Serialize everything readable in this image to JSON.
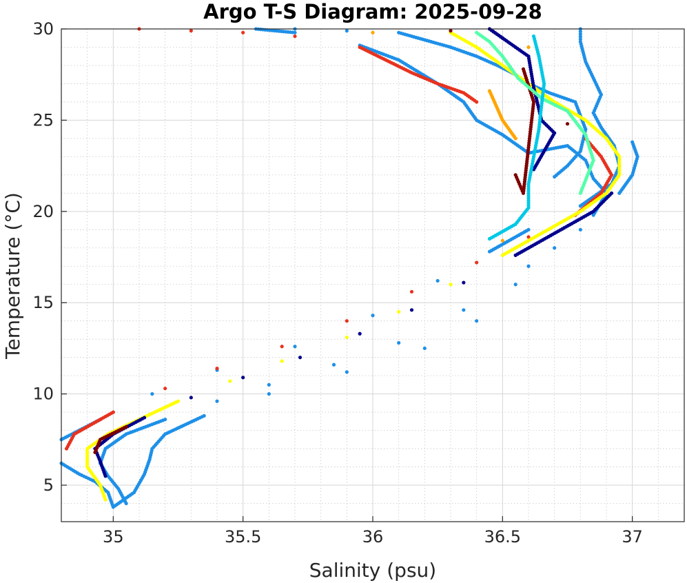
{
  "chart_data": {
    "type": "scatter",
    "title": "Argo T-S Diagram: 2025-09-28",
    "xlabel": "Salinity (psu)",
    "ylabel": "Temperature (°C)",
    "xlim": [
      34.8,
      37.2
    ],
    "ylim": [
      3,
      30
    ],
    "xticks": [
      35,
      35.5,
      36,
      36.5,
      37
    ],
    "xtick_labels": [
      "35",
      "35.5",
      "36",
      "36.5",
      "37"
    ],
    "yticks": [
      5,
      10,
      15,
      20,
      25,
      30
    ],
    "ytick_labels": [
      "5",
      "10",
      "15",
      "20",
      "25",
      "30"
    ],
    "grid": true,
    "minor_grid": true,
    "series": [
      {
        "color": "#1e90e8",
        "points": [
          [
            35.05,
            4.0
          ],
          [
            35.02,
            4.8
          ],
          [
            34.98,
            5.5
          ],
          [
            34.95,
            6.2
          ],
          [
            34.97,
            7.0
          ],
          [
            35.05,
            7.8
          ],
          [
            35.2,
            8.6
          ],
          [
            35.4,
            9.6
          ],
          [
            35.6,
            10.5
          ],
          [
            35.85,
            11.6
          ],
          [
            36.1,
            12.8
          ],
          [
            36.35,
            14.6
          ],
          [
            36.6,
            17.0
          ],
          [
            36.8,
            19.0
          ],
          [
            36.95,
            21.0
          ],
          [
            37.0,
            22.0
          ],
          [
            37.02,
            23.0
          ],
          [
            37.0,
            23.8
          ]
        ]
      },
      {
        "color": "#1e90e8",
        "points": [
          [
            34.8,
            7.5
          ],
          [
            34.95,
            8.6
          ],
          [
            35.15,
            10.0
          ],
          [
            35.4,
            11.3
          ],
          [
            35.7,
            12.6
          ],
          [
            36.0,
            14.3
          ],
          [
            36.25,
            16.2
          ],
          [
            36.45,
            17.8
          ],
          [
            36.6,
            19.0
          ],
          [
            36.8,
            20.3
          ],
          [
            36.92,
            21.5
          ],
          [
            36.95,
            22.5
          ],
          [
            36.93,
            23.6
          ],
          [
            36.88,
            24.6
          ],
          [
            36.85,
            25.4
          ],
          [
            36.88,
            26.4
          ],
          [
            36.85,
            27.3
          ],
          [
            36.82,
            28.2
          ],
          [
            36.8,
            29.3
          ],
          [
            36.8,
            30.0
          ]
        ]
      },
      {
        "color": "#1e90e8",
        "points": [
          [
            34.8,
            6.2
          ],
          [
            34.87,
            5.6
          ],
          [
            34.93,
            5.2
          ],
          [
            34.98,
            4.6
          ],
          [
            35.0,
            3.8
          ],
          [
            35.08,
            4.6
          ],
          [
            35.12,
            5.6
          ],
          [
            35.14,
            6.4
          ],
          [
            35.15,
            7.0
          ],
          [
            35.2,
            7.8
          ],
          [
            35.35,
            8.8
          ],
          [
            35.6,
            10.0
          ],
          [
            35.9,
            11.2
          ],
          [
            36.2,
            12.5
          ],
          [
            36.4,
            14.0
          ],
          [
            36.55,
            16.0
          ],
          [
            36.7,
            18.0
          ],
          [
            36.85,
            19.8
          ],
          [
            36.9,
            21.0
          ],
          [
            36.85,
            21.8
          ],
          [
            36.82,
            22.8
          ],
          [
            36.75,
            23.6
          ],
          [
            36.6,
            23.2
          ],
          [
            36.5,
            24.2
          ],
          [
            36.4,
            25.0
          ],
          [
            36.35,
            26.0
          ],
          [
            36.25,
            27.0
          ],
          [
            36.1,
            28.3
          ],
          [
            35.95,
            29.1
          ],
          [
            35.7,
            29.8
          ],
          [
            35.55,
            30.0
          ]
        ]
      },
      {
        "color": "#1e90e8",
        "points": [
          [
            35.7,
            30.0
          ],
          [
            35.9,
            29.9
          ],
          [
            36.1,
            29.8
          ],
          [
            36.2,
            29.4
          ],
          [
            36.3,
            29.0
          ],
          [
            36.4,
            28.5
          ],
          [
            36.48,
            28.0
          ],
          [
            36.55,
            27.5
          ],
          [
            36.6,
            27.0
          ],
          [
            36.68,
            26.5
          ],
          [
            36.78,
            26.0
          ],
          [
            36.82,
            24.5
          ],
          [
            36.8,
            23.3
          ],
          [
            36.75,
            22.5
          ],
          [
            36.7,
            21.9
          ]
        ]
      },
      {
        "color": "#e8321e",
        "points": [
          [
            34.82,
            7.0
          ],
          [
            34.85,
            7.8
          ],
          [
            35.0,
            9.0
          ],
          [
            35.2,
            10.3
          ],
          [
            35.4,
            11.4
          ],
          [
            35.65,
            12.6
          ],
          [
            35.9,
            14.0
          ],
          [
            36.15,
            15.6
          ],
          [
            36.4,
            17.2
          ],
          [
            36.6,
            18.6
          ],
          [
            36.78,
            19.8
          ],
          [
            36.88,
            21.0
          ],
          [
            36.92,
            22.0
          ],
          [
            36.88,
            23.0
          ],
          [
            36.82,
            24.0
          ]
        ]
      },
      {
        "color": "#e8321e",
        "points": [
          [
            36.4,
            26.0
          ],
          [
            36.35,
            26.5
          ],
          [
            36.25,
            27.0
          ],
          [
            36.15,
            27.6
          ],
          [
            36.05,
            28.3
          ],
          [
            35.95,
            29.0
          ],
          [
            35.7,
            29.6
          ],
          [
            35.5,
            29.8
          ],
          [
            35.3,
            29.9
          ],
          [
            35.1,
            30.0
          ]
        ]
      },
      {
        "color": "#ffff00",
        "points": [
          [
            34.97,
            4.2
          ],
          [
            34.95,
            5.0
          ],
          [
            34.9,
            6.0
          ],
          [
            34.9,
            7.0
          ],
          [
            34.98,
            7.8
          ],
          [
            35.1,
            8.6
          ],
          [
            35.25,
            9.6
          ],
          [
            35.45,
            10.7
          ],
          [
            35.65,
            11.8
          ],
          [
            35.9,
            13.1
          ],
          [
            36.1,
            14.5
          ],
          [
            36.3,
            16.0
          ],
          [
            36.5,
            17.6
          ],
          [
            36.65,
            18.8
          ],
          [
            36.8,
            20.0
          ],
          [
            36.9,
            21.0
          ],
          [
            36.95,
            22.0
          ],
          [
            36.95,
            23.0
          ],
          [
            36.9,
            24.0
          ],
          [
            36.82,
            25.0
          ],
          [
            36.7,
            26.0
          ],
          [
            36.6,
            27.0
          ],
          [
            36.5,
            28.0
          ],
          [
            36.4,
            29.0
          ],
          [
            36.3,
            29.8
          ]
        ]
      },
      {
        "color": "#00008c",
        "points": [
          [
            34.97,
            5.5
          ],
          [
            34.95,
            6.3
          ],
          [
            34.93,
            7.0
          ],
          [
            35.0,
            7.8
          ],
          [
            35.12,
            8.7
          ],
          [
            35.3,
            9.8
          ],
          [
            35.5,
            10.9
          ],
          [
            35.72,
            12.0
          ],
          [
            35.95,
            13.3
          ],
          [
            36.15,
            14.6
          ],
          [
            36.35,
            16.1
          ],
          [
            36.55,
            17.6
          ],
          [
            36.7,
            18.8
          ],
          [
            36.85,
            20.0
          ],
          [
            36.92,
            21.0
          ],
          [
            36.5,
            29.5
          ],
          [
            36.45,
            30.0
          ],
          [
            36.6,
            28.5
          ],
          [
            36.62,
            26.8
          ],
          [
            36.65,
            25.0
          ],
          [
            36.7,
            24.3
          ],
          [
            36.62,
            22.3
          ]
        ]
      },
      {
        "color": "#7d0000",
        "points": [
          [
            34.93,
            6.8
          ],
          [
            34.95,
            7.5
          ],
          [
            35.05,
            8.2
          ],
          [
            36.3,
            29.9
          ],
          [
            36.55,
            22.0
          ],
          [
            36.58,
            21.0
          ],
          [
            36.6,
            23.5
          ],
          [
            36.62,
            26.0
          ],
          [
            36.58,
            27.8
          ],
          [
            36.75,
            24.8
          ]
        ]
      },
      {
        "color": "#ffa500",
        "points": [
          [
            36.0,
            29.8
          ],
          [
            36.45,
            26.6
          ],
          [
            36.5,
            25.0
          ],
          [
            36.55,
            24.0
          ],
          [
            36.5,
            18.4
          ],
          [
            36.6,
            29.0
          ]
        ]
      },
      {
        "color": "#55ffaa",
        "points": [
          [
            36.4,
            29.8
          ],
          [
            36.45,
            29.3
          ],
          [
            36.5,
            28.5
          ],
          [
            36.56,
            27.3
          ],
          [
            36.65,
            26.2
          ],
          [
            36.75,
            25.5
          ],
          [
            36.82,
            24.2
          ],
          [
            36.85,
            22.8
          ],
          [
            36.8,
            21.0
          ]
        ]
      },
      {
        "color": "#00c8e6",
        "points": [
          [
            36.62,
            29.6
          ],
          [
            36.64,
            28.5
          ],
          [
            36.66,
            27.0
          ],
          [
            36.65,
            25.8
          ],
          [
            36.64,
            24.5
          ],
          [
            36.62,
            23.0
          ],
          [
            36.6,
            21.5
          ],
          [
            36.6,
            20.2
          ],
          [
            36.55,
            19.3
          ],
          [
            36.45,
            18.5
          ]
        ]
      }
    ]
  }
}
